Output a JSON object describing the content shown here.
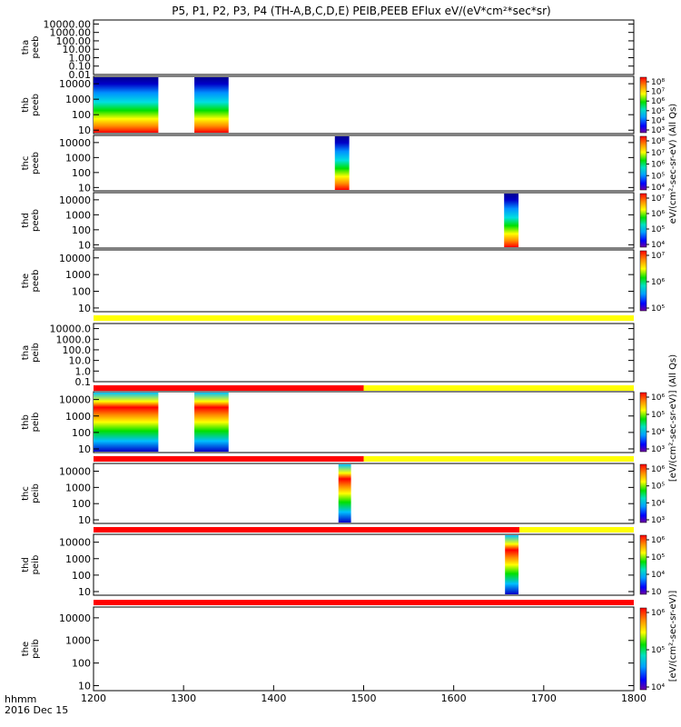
{
  "chart_data": {
    "type": "heatmap",
    "title": "P5, P1, P2, P3, P4 (TH-A,B,C,D,E) PEIB,PEEB EFlux eV/(eV*cm²*sec*sr)",
    "xlabel_time": "hhmm",
    "xlabel_date": "2016 Dec 15",
    "x_ticks": [
      "1200",
      "1300",
      "1400",
      "1500",
      "1600",
      "1700",
      "1800"
    ],
    "xlim": [
      1200,
      1800
    ],
    "panels": [
      {
        "id": "tha_peeb",
        "probe": "tha",
        "inst": "peeb",
        "y_ticks": [
          "10000.00",
          "1000.00",
          "100.00",
          "10.00",
          "1.00",
          "0.10",
          "0.01"
        ],
        "ylim": [
          0.01,
          30000
        ],
        "blocks": [],
        "colorbar": false
      },
      {
        "id": "thb_peeb",
        "probe": "thb",
        "inst": "peeb",
        "y_ticks": [
          "10000",
          "1000",
          "100",
          "10"
        ],
        "ylim": [
          6,
          30000
        ],
        "blocks": [
          [
            1200,
            1272
          ],
          [
            1312,
            1350
          ]
        ],
        "colorbar": true,
        "cbar_ticks": [
          "10⁸",
          "10⁷",
          "10⁶",
          "10⁵",
          "10⁴",
          "10³"
        ]
      },
      {
        "id": "thc_peeb",
        "probe": "thc",
        "inst": "peeb",
        "y_ticks": [
          "10000",
          "1000",
          "100",
          "10"
        ],
        "ylim": [
          6,
          30000
        ],
        "blocks": [
          [
            1468,
            1484
          ]
        ],
        "colorbar": true,
        "cbar_ticks": [
          "10⁸",
          "10⁷",
          "10⁶",
          "10⁵",
          "10⁴"
        ]
      },
      {
        "id": "thd_peeb",
        "probe": "thd",
        "inst": "peeb",
        "y_ticks": [
          "10000",
          "1000",
          "100",
          "10"
        ],
        "ylim": [
          6,
          30000
        ],
        "blocks": [
          [
            1656,
            1672
          ]
        ],
        "colorbar": true,
        "cbar_ticks": [
          "10⁷",
          "10⁶",
          "10⁵",
          "10⁴"
        ]
      },
      {
        "id": "the_peeb",
        "probe": "the",
        "inst": "peeb",
        "y_ticks": [
          "10000",
          "1000",
          "100",
          "10"
        ],
        "ylim": [
          6,
          30000
        ],
        "blocks": [],
        "colorbar": true,
        "cbar_ticks": [
          "10⁷",
          "10⁶",
          "10⁵"
        ]
      },
      {
        "id": "tha_peib",
        "probe": "tha",
        "inst": "peib",
        "y_ticks": [
          "10000.0",
          "1000.0",
          "100.0",
          "10.0",
          "1.0",
          "0.1"
        ],
        "ylim": [
          0.1,
          30000
        ],
        "blocks": [],
        "colorbar": false
      },
      {
        "id": "thb_peib",
        "probe": "thb",
        "inst": "peib",
        "y_ticks": [
          "10000",
          "1000",
          "100",
          "10"
        ],
        "ylim": [
          6,
          30000
        ],
        "blocks": [
          [
            1200,
            1272
          ],
          [
            1312,
            1350
          ]
        ],
        "colorbar": true,
        "cbar_ticks": [
          "10⁶",
          "10⁵",
          "10⁴",
          "10³"
        ]
      },
      {
        "id": "thc_peib",
        "probe": "thc",
        "inst": "peib",
        "y_ticks": [
          "10000",
          "1000",
          "100",
          "10"
        ],
        "ylim": [
          6,
          30000
        ],
        "blocks": [
          [
            1472,
            1486
          ]
        ],
        "colorbar": true,
        "cbar_ticks": [
          "10⁶",
          "10⁵",
          "10⁴",
          "10³"
        ]
      },
      {
        "id": "thd_peib",
        "probe": "thd",
        "inst": "peib",
        "y_ticks": [
          "10000",
          "1000",
          "100",
          "10"
        ],
        "ylim": [
          6,
          30000
        ],
        "blocks": [
          [
            1657,
            1672
          ]
        ],
        "colorbar": true,
        "cbar_ticks": [
          "10⁶",
          "10⁵",
          "10⁴",
          "10⁳"
        ]
      },
      {
        "id": "the_peib",
        "probe": "the",
        "inst": "peib",
        "y_ticks": [
          "10000",
          "1000",
          "100",
          "10"
        ],
        "ylim": [
          6,
          30000
        ],
        "blocks": [],
        "colorbar": true,
        "cbar_ticks": [
          "10⁶",
          "10⁵",
          "10⁴"
        ]
      }
    ],
    "flag_bars": [
      {
        "after_panel": 4,
        "segments": [
          {
            "from": 1200,
            "to": 1800,
            "color": "yellow"
          }
        ]
      },
      {
        "after_panel": 5,
        "segments": [
          {
            "from": 1200,
            "to": 1500,
            "color": "red"
          },
          {
            "from": 1500,
            "to": 1800,
            "color": "yellow"
          }
        ]
      },
      {
        "after_panel": 6,
        "segments": [
          {
            "from": 1200,
            "to": 1500,
            "color": "red"
          },
          {
            "from": 1500,
            "to": 1800,
            "color": "yellow"
          }
        ]
      },
      {
        "after_panel": 7,
        "segments": [
          {
            "from": 1200,
            "to": 1673,
            "color": "red"
          },
          {
            "from": 1673,
            "to": 1800,
            "color": "yellow"
          }
        ]
      },
      {
        "after_panel": 8,
        "segments": [
          {
            "from": 1200,
            "to": 1800,
            "color": "red"
          }
        ]
      }
    ],
    "colorbar_titles": [
      "eV/(cm²-sec-sr-eV) (All Qs)",
      "[eV/(cm²-sec-sr-eV)] (All Qs)",
      "[eV/(cm²-sec-sr-eV)]"
    ],
    "colors": {
      "red": "#ff0000",
      "yellow": "#ffff00",
      "black": "#000000"
    }
  }
}
